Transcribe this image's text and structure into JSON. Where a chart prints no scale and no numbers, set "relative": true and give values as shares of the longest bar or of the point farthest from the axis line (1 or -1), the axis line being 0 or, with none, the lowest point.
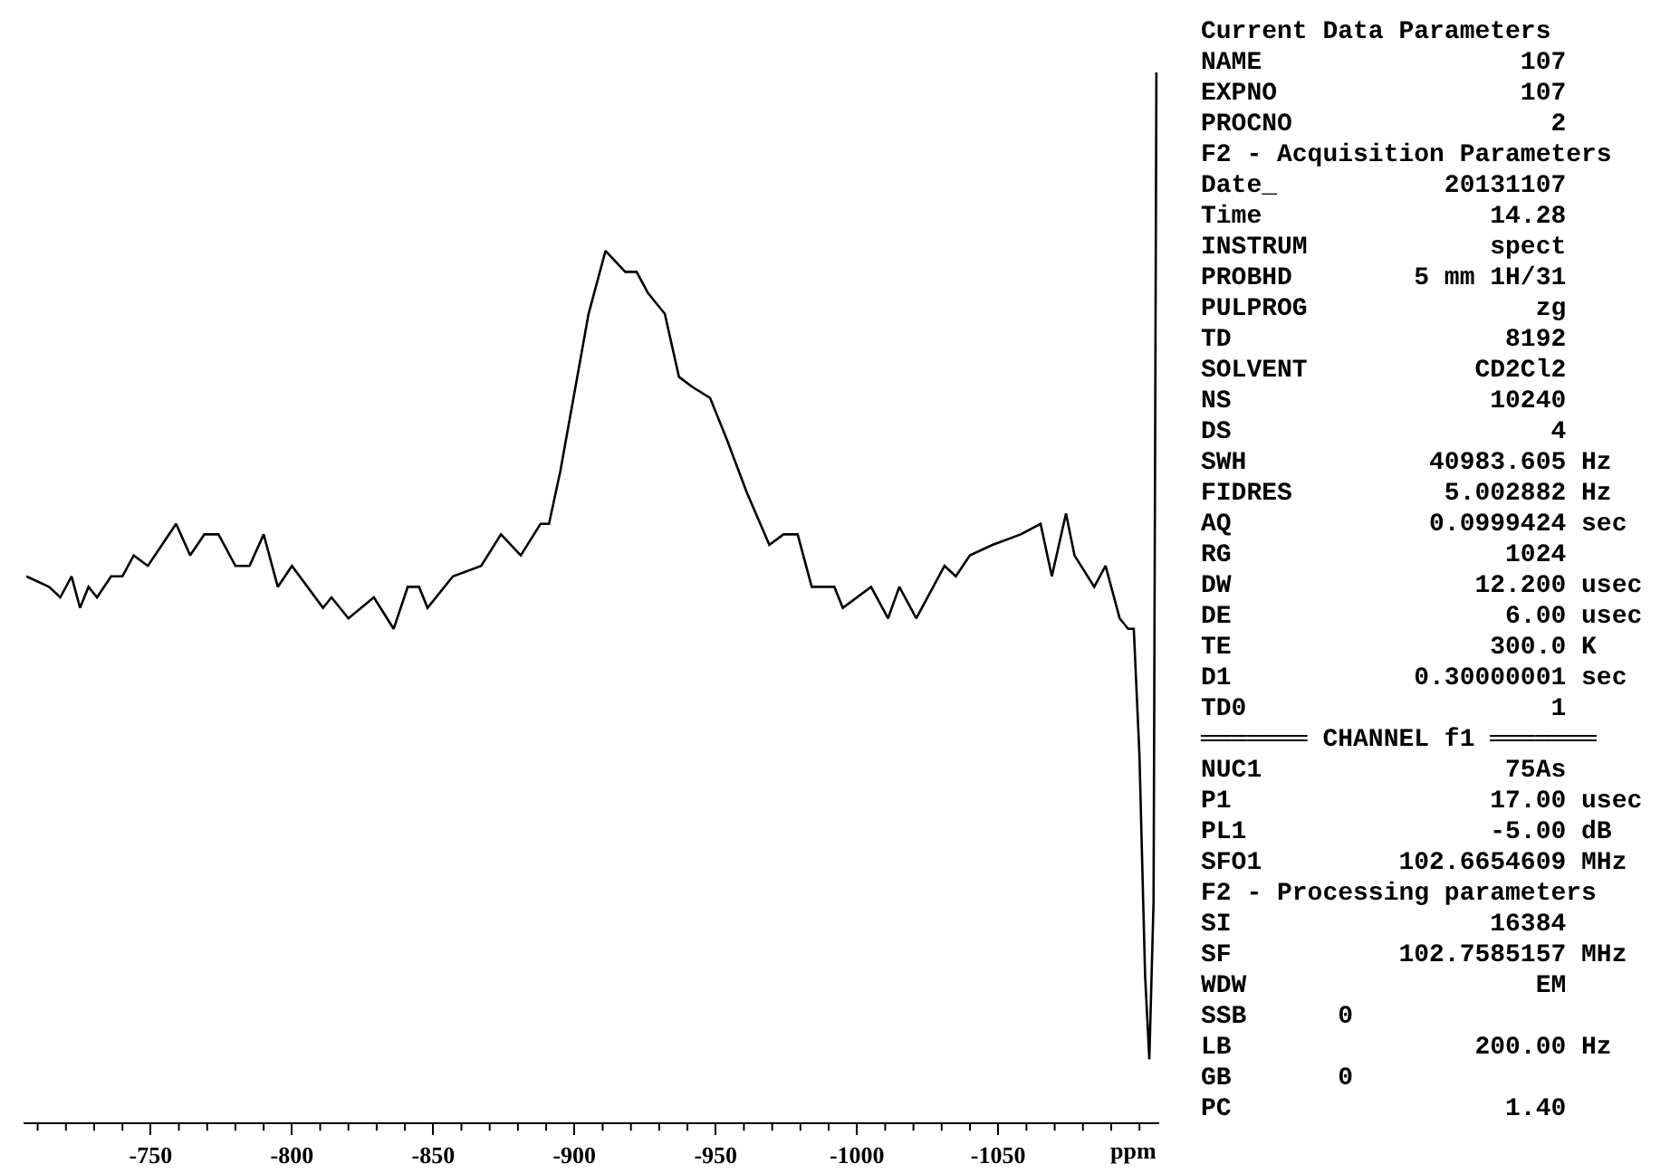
{
  "chart_data": {
    "type": "line",
    "relative": true,
    "xlabel": "ppm",
    "grid": false,
    "marker": "none",
    "line_style": "solid",
    "xlim": [
      -705,
      -1107
    ],
    "xticks": [
      {
        "value": -710,
        "label": null
      },
      {
        "value": -720,
        "label": null
      },
      {
        "value": -730,
        "label": null
      },
      {
        "value": -740,
        "label": null
      },
      -750,
      {
        "value": -760,
        "label": null
      },
      {
        "value": -770,
        "label": null
      },
      {
        "value": -780,
        "label": null
      },
      {
        "value": -790,
        "label": null
      },
      -800,
      {
        "value": -810,
        "label": null
      },
      {
        "value": -820,
        "label": null
      },
      {
        "value": -830,
        "label": null
      },
      {
        "value": -840,
        "label": null
      },
      -850,
      {
        "value": -860,
        "label": null
      },
      {
        "value": -870,
        "label": null
      },
      {
        "value": -880,
        "label": null
      },
      {
        "value": -890,
        "label": null
      },
      -900,
      {
        "value": -910,
        "label": null
      },
      {
        "value": -920,
        "label": null
      },
      {
        "value": -930,
        "label": null
      },
      {
        "value": -940,
        "label": null
      },
      -950,
      {
        "value": -960,
        "label": null
      },
      {
        "value": -970,
        "label": null
      },
      {
        "value": -980,
        "label": null
      },
      {
        "value": -990,
        "label": null
      },
      -1000,
      {
        "value": -1010,
        "label": null
      },
      {
        "value": -1020,
        "label": null
      },
      {
        "value": -1030,
        "label": null
      },
      {
        "value": -1040,
        "label": null
      },
      -1050,
      {
        "value": -1060,
        "label": null
      },
      {
        "value": -1070,
        "label": null
      },
      {
        "value": -1080,
        "label": null
      },
      {
        "value": -1090,
        "label": null
      },
      {
        "value": -1100,
        "label": null
      }
    ],
    "x": [
      -706,
      -714,
      -718,
      -722,
      -725,
      -728,
      -731,
      -736,
      -740,
      -744,
      -749,
      -754,
      -759,
      -764,
      -769,
      -774,
      -780,
      -785,
      -790,
      -795,
      -800,
      -811,
      -814,
      -820,
      -829,
      -836,
      -841,
      -845,
      -848,
      -857,
      -867,
      -874,
      -881,
      -888,
      -891,
      -895,
      -901,
      -905,
      -911,
      -918,
      -922,
      -926,
      -932,
      -937,
      -942,
      -948,
      -954,
      -961,
      -969,
      -974,
      -979,
      -984,
      -992,
      -995,
      -1005,
      -1011,
      -1015,
      -1021,
      -1031,
      -1035,
      -1040,
      -1048,
      -1058,
      -1065,
      -1069,
      -1074,
      -1077,
      -1084,
      -1088,
      -1093,
      -1096,
      -1098,
      -1100,
      -1102,
      -1103.5,
      -1105,
      -1106
    ],
    "series": [
      {
        "color": "#000000",
        "values": [
          0.52,
          0.51,
          0.5,
          0.52,
          0.49,
          0.51,
          0.5,
          0.52,
          0.52,
          0.54,
          0.53,
          0.55,
          0.57,
          0.54,
          0.56,
          0.56,
          0.53,
          0.53,
          0.56,
          0.51,
          0.53,
          0.49,
          0.5,
          0.48,
          0.5,
          0.47,
          0.51,
          0.51,
          0.49,
          0.52,
          0.53,
          0.56,
          0.54,
          0.57,
          0.57,
          0.62,
          0.71,
          0.77,
          0.83,
          0.81,
          0.81,
          0.79,
          0.77,
          0.71,
          0.7,
          0.69,
          0.65,
          0.6,
          0.55,
          0.56,
          0.56,
          0.51,
          0.51,
          0.49,
          0.51,
          0.48,
          0.51,
          0.48,
          0.53,
          0.52,
          0.54,
          0.55,
          0.56,
          0.57,
          0.52,
          0.58,
          0.54,
          0.51,
          0.53,
          0.48,
          0.47,
          0.47,
          0.35,
          0.14,
          0.06,
          0.21,
          1
        ]
      }
    ],
    "annotations": [
      "Current Data Parameters",
      "NAME                 107",
      "EXPNO                107",
      "PROCNO                 2",
      "F2 - Acquisition Parameters",
      "Date_           20131107",
      "Time               14.28",
      "INSTRUM            spect",
      "PROBHD        5 mm 1H/31",
      "PULPROG               zg",
      "TD                  8192",
      "SOLVENT           CD2Cl2",
      "NS                 10240",
      "DS                     4",
      "SWH            40983.605 Hz",
      "FIDRES          5.002882 Hz",
      "AQ             0.0999424 sec",
      "RG                  1024",
      "DW                12.200 usec",
      "DE                  6.00 usec",
      "TE                 300.0 K",
      "D1            0.30000001 sec",
      "TD0                    1",
      "═══════ CHANNEL f1 ═══════",
      "NUC1                75As",
      "P1                 17.00 usec",
      "PL1                -5.00 dB",
      "SFO1         102.6654609 MHz",
      "F2 - Processing parameters",
      "SI                 16384",
      "SF           102.7585157 MHz",
      "WDW                   EM",
      "SSB      0",
      "LB                200.00 Hz",
      "GB       0",
      "PC                  1.40"
    ]
  }
}
